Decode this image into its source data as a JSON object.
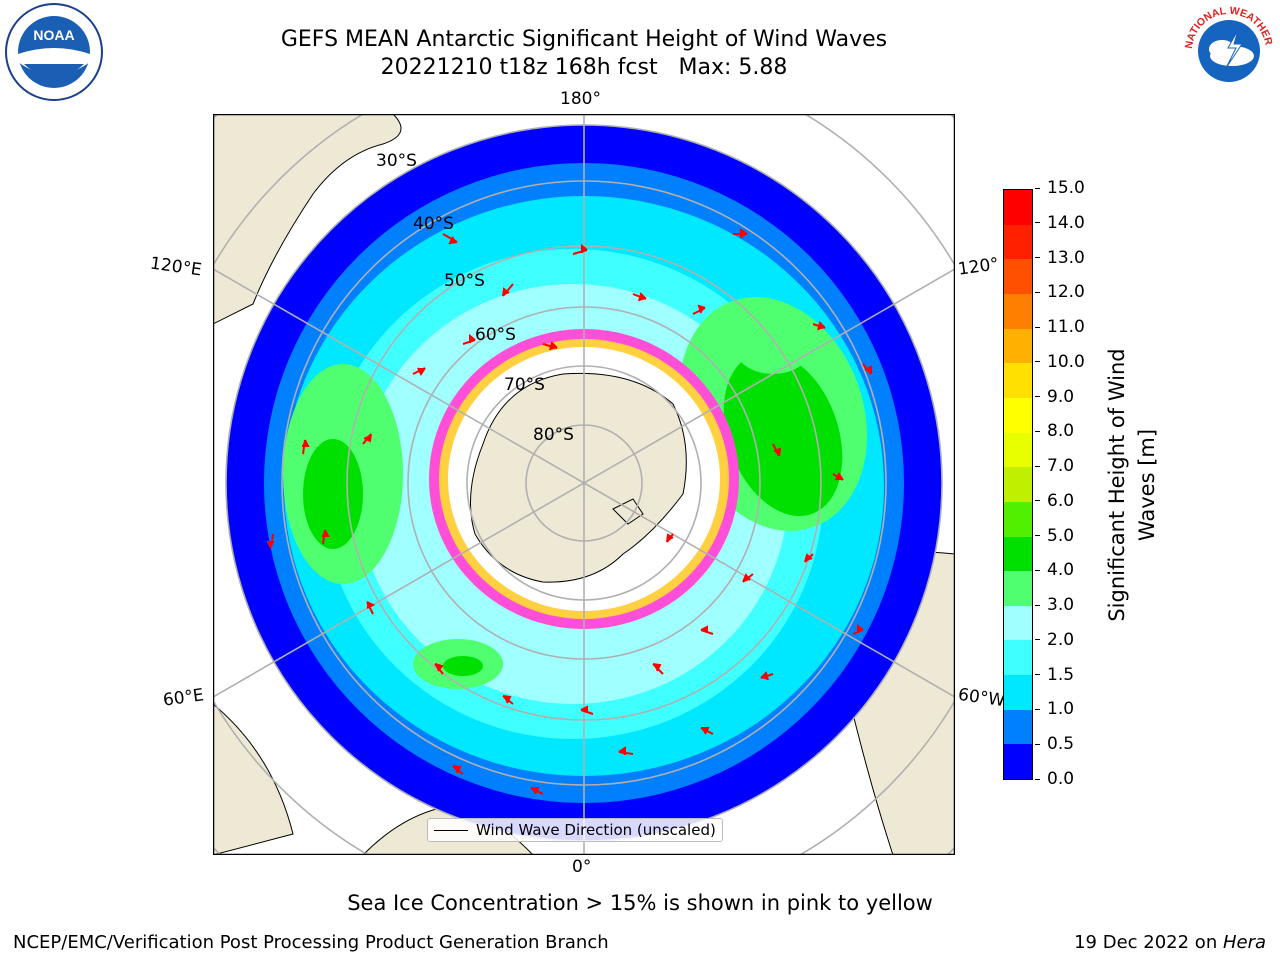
{
  "title": {
    "line1": "GEFS MEAN Antarctic Significant Height of Wind Waves",
    "line2": "20221210 t18z 168h fcst   Max: 5.88"
  },
  "logos": {
    "left": {
      "name": "noaa-logo",
      "text": "NOAA"
    },
    "right": {
      "name": "nws-logo",
      "text": "NATIONAL WEATHER SERVICE"
    }
  },
  "map": {
    "projection": "south-polar-stereographic",
    "longitude_labels": {
      "top": "180°",
      "bottom": "0°",
      "upper_left": "120°E",
      "lower_left": "60°E",
      "upper_right": "120°",
      "lower_right": "60°W"
    },
    "latitude_labels": [
      "30°S",
      "40°S",
      "50°S",
      "60°S",
      "70°S",
      "80°S"
    ],
    "colors": {
      "land": "#ede9d5",
      "ice": "#ffffff",
      "grid": "#b0b0b0",
      "arrow": "#ff0000",
      "sea_ice_pink": "#ff4fd8",
      "sea_ice_yellow": "#ffd040"
    }
  },
  "legend": {
    "label": "Wind Wave Direction (unscaled)"
  },
  "colorbar": {
    "label": "Significant Height of Wind Waves [m]",
    "label_line1": "Significant Height of Wind",
    "label_line2": "Waves [m]",
    "ticks": [
      "15.0",
      "14.0",
      "13.0",
      "12.0",
      "11.0",
      "10.0",
      "9.0",
      "8.0",
      "7.0",
      "6.0",
      "5.0",
      "4.0",
      "3.0",
      "2.0",
      "1.5",
      "1.0",
      "0.5",
      "0.0"
    ],
    "colors_bottom_to_top": [
      "#0000ff",
      "#0080ff",
      "#00e8ff",
      "#40ffff",
      "#a0ffff",
      "#50ff70",
      "#00e000",
      "#50f000",
      "#c0f000",
      "#e8ff00",
      "#ffff00",
      "#ffe000",
      "#ffb000",
      "#ff8000",
      "#ff5000",
      "#ff2000",
      "#ff0000"
    ]
  },
  "note": "Sea Ice Concentration > 15% is shown in pink to yellow",
  "footer": {
    "left": "NCEP/EMC/Verification Post Processing Product Generation Branch",
    "right_prefix": "19 Dec 2022 on ",
    "right_italic": "Hera"
  }
}
